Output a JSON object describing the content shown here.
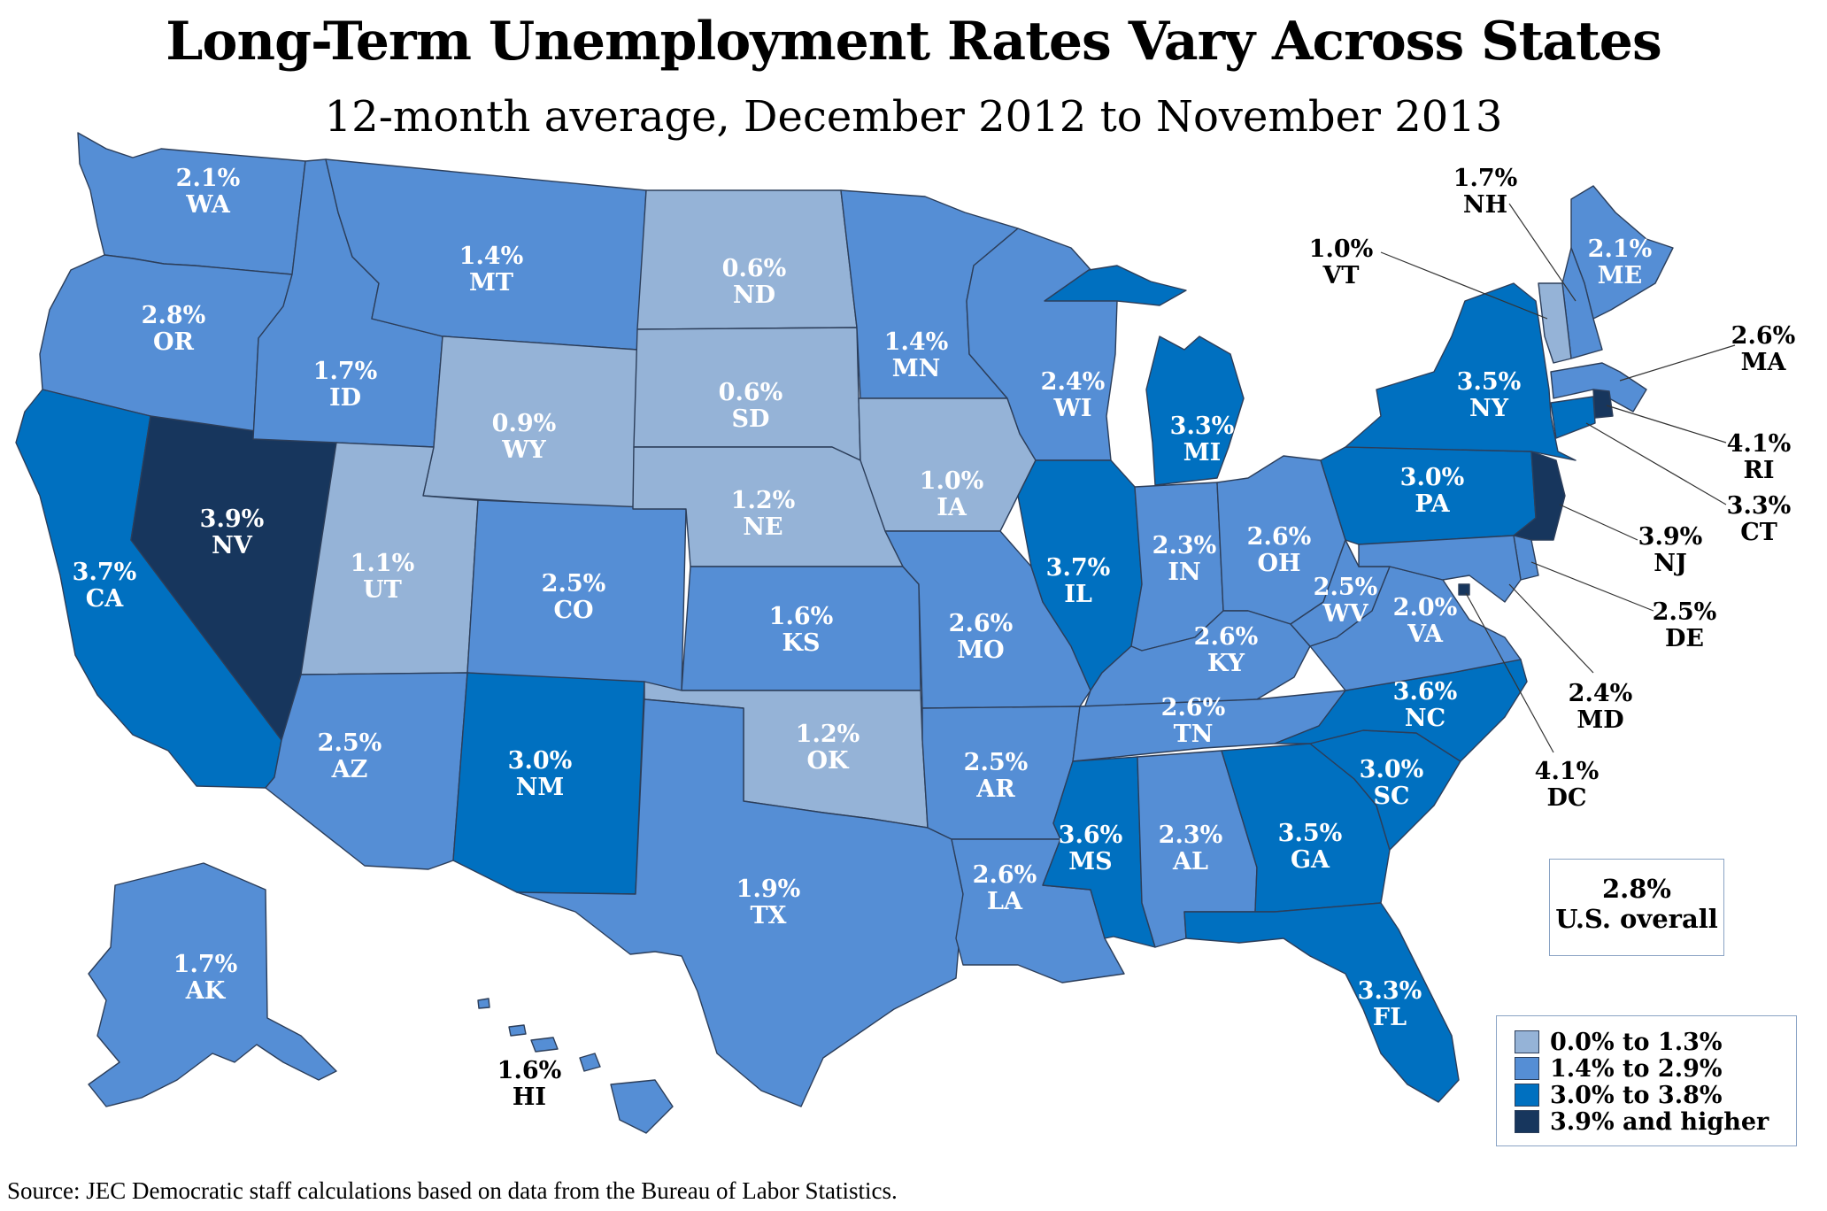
{
  "title": "Long-Term Unemployment Rates Vary Across States",
  "subtitle": "12-month average, December 2012 to November 2013",
  "source": "Source: JEC Democratic staff calculations based on data from the Bureau of Labor Statistics.",
  "overall": {
    "value": "2.8%",
    "label": "U.S. overall"
  },
  "colors": {
    "c1": "#95b3d7",
    "c2": "#558ed5",
    "c3": "#0070c0",
    "c4": "#17365d"
  },
  "legend": [
    {
      "label": "0.0% to 1.3%",
      "color": "c1"
    },
    {
      "label": "1.4% to 2.9%",
      "color": "c2"
    },
    {
      "label": "3.0% to 3.8%",
      "color": "c3"
    },
    {
      "label": "3.9% and higher",
      "color": "c4"
    }
  ],
  "states": [
    {
      "abbr": "WA",
      "value": "2.1%",
      "class": "c2"
    },
    {
      "abbr": "OR",
      "value": "2.8%",
      "class": "c2"
    },
    {
      "abbr": "CA",
      "value": "3.7%",
      "class": "c3"
    },
    {
      "abbr": "NV",
      "value": "3.9%",
      "class": "c4"
    },
    {
      "abbr": "ID",
      "value": "1.7%",
      "class": "c2"
    },
    {
      "abbr": "MT",
      "value": "1.4%",
      "class": "c2"
    },
    {
      "abbr": "WY",
      "value": "0.9%",
      "class": "c1"
    },
    {
      "abbr": "UT",
      "value": "1.1%",
      "class": "c1"
    },
    {
      "abbr": "AZ",
      "value": "2.5%",
      "class": "c2"
    },
    {
      "abbr": "CO",
      "value": "2.5%",
      "class": "c2"
    },
    {
      "abbr": "NM",
      "value": "3.0%",
      "class": "c3"
    },
    {
      "abbr": "ND",
      "value": "0.6%",
      "class": "c1"
    },
    {
      "abbr": "SD",
      "value": "0.6%",
      "class": "c1"
    },
    {
      "abbr": "NE",
      "value": "1.2%",
      "class": "c1"
    },
    {
      "abbr": "KS",
      "value": "1.6%",
      "class": "c2"
    },
    {
      "abbr": "OK",
      "value": "1.2%",
      "class": "c1"
    },
    {
      "abbr": "TX",
      "value": "1.9%",
      "class": "c2"
    },
    {
      "abbr": "MN",
      "value": "1.4%",
      "class": "c2"
    },
    {
      "abbr": "IA",
      "value": "1.0%",
      "class": "c1"
    },
    {
      "abbr": "MO",
      "value": "2.6%",
      "class": "c2"
    },
    {
      "abbr": "AR",
      "value": "2.5%",
      "class": "c2"
    },
    {
      "abbr": "LA",
      "value": "2.6%",
      "class": "c2"
    },
    {
      "abbr": "WI",
      "value": "2.4%",
      "class": "c2"
    },
    {
      "abbr": "IL",
      "value": "3.7%",
      "class": "c3"
    },
    {
      "abbr": "MI",
      "value": "3.3%",
      "class": "c3"
    },
    {
      "abbr": "IN",
      "value": "2.3%",
      "class": "c2"
    },
    {
      "abbr": "OH",
      "value": "2.6%",
      "class": "c2"
    },
    {
      "abbr": "KY",
      "value": "2.6%",
      "class": "c2"
    },
    {
      "abbr": "TN",
      "value": "2.6%",
      "class": "c2"
    },
    {
      "abbr": "MS",
      "value": "3.6%",
      "class": "c3"
    },
    {
      "abbr": "AL",
      "value": "2.3%",
      "class": "c2"
    },
    {
      "abbr": "GA",
      "value": "3.5%",
      "class": "c3"
    },
    {
      "abbr": "FL",
      "value": "3.3%",
      "class": "c3"
    },
    {
      "abbr": "SC",
      "value": "3.0%",
      "class": "c3"
    },
    {
      "abbr": "NC",
      "value": "3.6%",
      "class": "c3"
    },
    {
      "abbr": "VA",
      "value": "2.0%",
      "class": "c2"
    },
    {
      "abbr": "WV",
      "value": "2.5%",
      "class": "c2"
    },
    {
      "abbr": "PA",
      "value": "3.0%",
      "class": "c3"
    },
    {
      "abbr": "NY",
      "value": "3.5%",
      "class": "c3"
    },
    {
      "abbr": "ME",
      "value": "2.1%",
      "class": "c2"
    },
    {
      "abbr": "AK",
      "value": "1.7%",
      "class": "c2"
    },
    {
      "abbr": "HI",
      "value": "1.6%",
      "class": "c2"
    },
    {
      "abbr": "NH",
      "value": "1.7%",
      "class": "c2"
    },
    {
      "abbr": "VT",
      "value": "1.0%",
      "class": "c1"
    },
    {
      "abbr": "MA",
      "value": "2.6%",
      "class": "c2"
    },
    {
      "abbr": "RI",
      "value": "4.1%",
      "class": "c4"
    },
    {
      "abbr": "CT",
      "value": "3.3%",
      "class": "c3"
    },
    {
      "abbr": "NJ",
      "value": "3.9%",
      "class": "c4"
    },
    {
      "abbr": "DE",
      "value": "2.5%",
      "class": "c2"
    },
    {
      "abbr": "MD",
      "value": "2.4%",
      "class": "c2"
    },
    {
      "abbr": "DC",
      "value": "4.1%",
      "class": "c4"
    }
  ]
}
